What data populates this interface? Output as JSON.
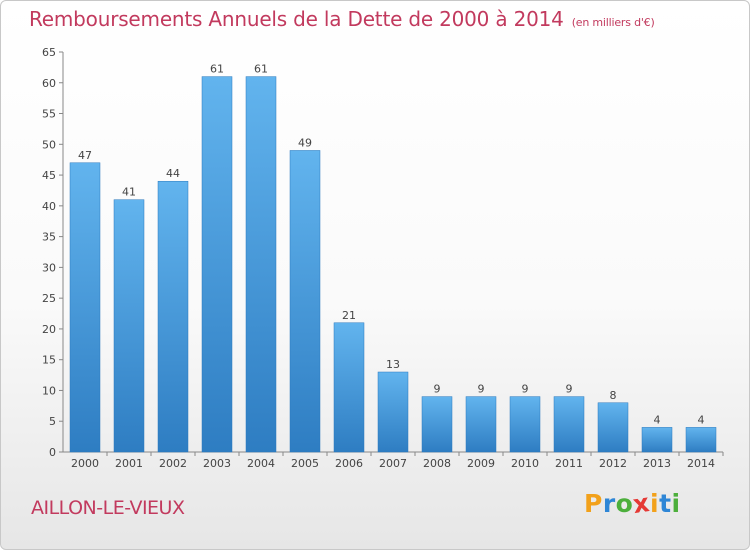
{
  "header": {
    "title": "Remboursements Annuels de la Dette de 2000 à 2014",
    "unit": "(en milliers d'€)"
  },
  "footer": {
    "commune": "AILLON-LE-VIEUX",
    "logo": [
      "P",
      "r",
      "o",
      "x",
      "i",
      "t",
      "i"
    ]
  },
  "colors": {
    "title": "#c23a5e",
    "bar_top": "#62b4ee",
    "bar_bottom": "#2e7dc2",
    "logo": [
      "#f2a11b",
      "#2e86d6",
      "#4caf3c",
      "#e53935",
      "#f2a11b",
      "#2e86d6",
      "#4caf3c"
    ]
  },
  "chart_data": {
    "type": "bar",
    "title": "Remboursements Annuels de la Dette de 2000 à 2014",
    "categories": [
      "2000",
      "2001",
      "2002",
      "2003",
      "2004",
      "2005",
      "2006",
      "2007",
      "2008",
      "2009",
      "2010",
      "2011",
      "2012",
      "2013",
      "2014"
    ],
    "values": [
      47,
      41,
      44,
      61,
      61,
      49,
      21,
      13,
      9,
      9,
      9,
      9,
      8,
      4,
      4
    ],
    "ylim": [
      0,
      65
    ],
    "yticks": [
      0,
      5,
      10,
      15,
      20,
      25,
      30,
      35,
      40,
      45,
      50,
      55,
      60,
      65
    ],
    "grid": false,
    "legend": "none"
  }
}
